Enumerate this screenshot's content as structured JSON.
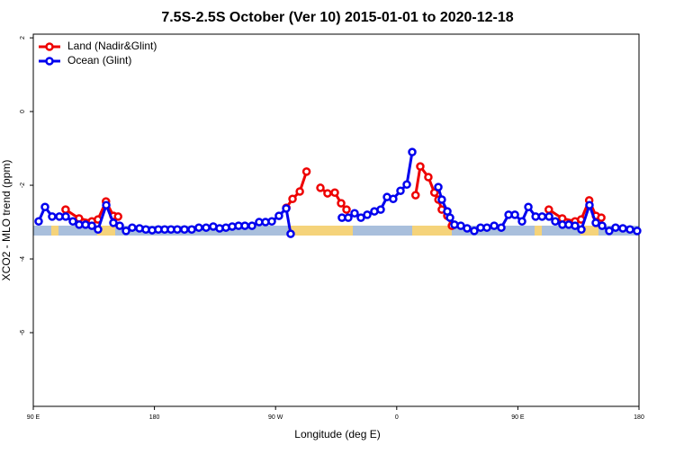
{
  "chart_data": {
    "type": "line",
    "title": "7.5S-2.5S October (Ver 10)   2015-01-01 to 2020-12-18",
    "xlabel": "Longitude (deg E)",
    "ylabel": "XCO2 - MLO trend (ppm)",
    "xlim": [
      90,
      540
    ],
    "ylim": [
      -8,
      2.1
    ],
    "xticks": [
      {
        "value": 90,
        "label": "90 E"
      },
      180,
      {
        "value": 270,
        "label": "90 W"
      },
      {
        "value": 360,
        "label": "0"
      },
      {
        "value": 450,
        "label": "90 E"
      },
      {
        "value": 540,
        "label": "180"
      }
    ],
    "yticks": [
      2,
      0,
      -2,
      -4,
      -6
    ],
    "legend": "top-left",
    "series": [
      {
        "name": "Land (Nadir&Glint)",
        "color": "#ee0000",
        "x": [
          114,
          124,
          133.5,
          138,
          144,
          149.5,
          153,
          200,
          278,
          282.6,
          288,
          293,
          298,
          303.3,
          308.6,
          314,
          318.7,
          322.7,
          350,
          374,
          377.5,
          383.5,
          388,
          391,
          393.5,
          397.6,
          401,
          440,
          473,
          483,
          492.5,
          497,
          503,
          508,
          512
        ],
        "values": [
          -2.66,
          -2.9,
          -2.98,
          -2.93,
          -2.44,
          -2.83,
          -2.85,
          null,
          -2.61,
          -2.37,
          -2.17,
          -1.63,
          null,
          -2.07,
          -2.22,
          -2.2,
          -2.49,
          -2.66,
          null,
          -2.27,
          -1.49,
          -1.78,
          -2.2,
          -2.39,
          -2.66,
          -2.83,
          -3.1,
          null,
          -2.66,
          -2.9,
          -2.98,
          -2.93,
          -2.41,
          -2.83,
          -2.88
        ]
      },
      {
        "name": "Ocean (Glint)",
        "color": "#0000ee",
        "x": [
          94,
          98.7,
          104,
          109.4,
          114.1,
          119.4,
          124.1,
          128.8,
          133.5,
          138.1,
          144.2,
          149.5,
          154.2,
          158.9,
          163.5,
          168.9,
          173.6,
          178.3,
          182.9,
          187.6,
          192.3,
          197,
          202.3,
          207.7,
          213,
          218.4,
          223.7,
          228.4,
          233.1,
          237.8,
          242.5,
          247.2,
          252.5,
          257.8,
          262.5,
          267.2,
          272.5,
          277.9,
          281.2,
          299.3,
          319.3,
          324,
          328.7,
          333.4,
          338.1,
          343.4,
          348.1,
          352.8,
          357.4,
          362.8,
          367.5,
          371.5,
          380.8,
          390.9,
          393.5,
          397.6,
          399.6,
          402.9,
          407.6,
          412.3,
          417.6,
          422.3,
          427,
          432.4,
          437.7,
          443.1,
          447.8,
          453.1,
          457.8,
          463.2,
          468,
          473.2,
          477.8,
          483.1,
          487.8,
          492.5,
          497.2,
          503.2,
          507.9,
          512.6,
          517.9,
          522.6,
          528,
          533.3,
          538.6
        ],
        "values": [
          -2.98,
          -2.59,
          -2.85,
          -2.85,
          -2.85,
          -2.98,
          -3.07,
          -3.07,
          -3.1,
          -3.2,
          -2.54,
          -3.02,
          -3.1,
          -3.24,
          -3.15,
          -3.17,
          -3.2,
          -3.22,
          -3.2,
          -3.2,
          -3.2,
          -3.2,
          -3.2,
          -3.2,
          -3.15,
          -3.15,
          -3.12,
          -3.17,
          -3.15,
          -3.12,
          -3.1,
          -3.1,
          -3.1,
          -3.0,
          -3.0,
          -2.98,
          -2.83,
          -2.63,
          -3.32,
          null,
          -2.88,
          -2.88,
          -2.76,
          -2.88,
          -2.8,
          -2.71,
          -2.66,
          -2.32,
          -2.37,
          -2.15,
          -1.98,
          -1.1,
          null,
          -2.05,
          -2.39,
          -2.71,
          -2.88,
          -3.07,
          -3.1,
          -3.17,
          -3.24,
          -3.15,
          -3.15,
          -3.1,
          -3.15,
          -2.8,
          -2.8,
          -2.98,
          -2.59,
          -2.85,
          -2.85,
          -2.85,
          -2.98,
          -3.07,
          -3.07,
          -3.1,
          -3.2,
          -2.54,
          -3.02,
          -3.1,
          -3.24,
          -3.15,
          -3.17,
          -3.2,
          -3.24
        ]
      }
    ]
  }
}
